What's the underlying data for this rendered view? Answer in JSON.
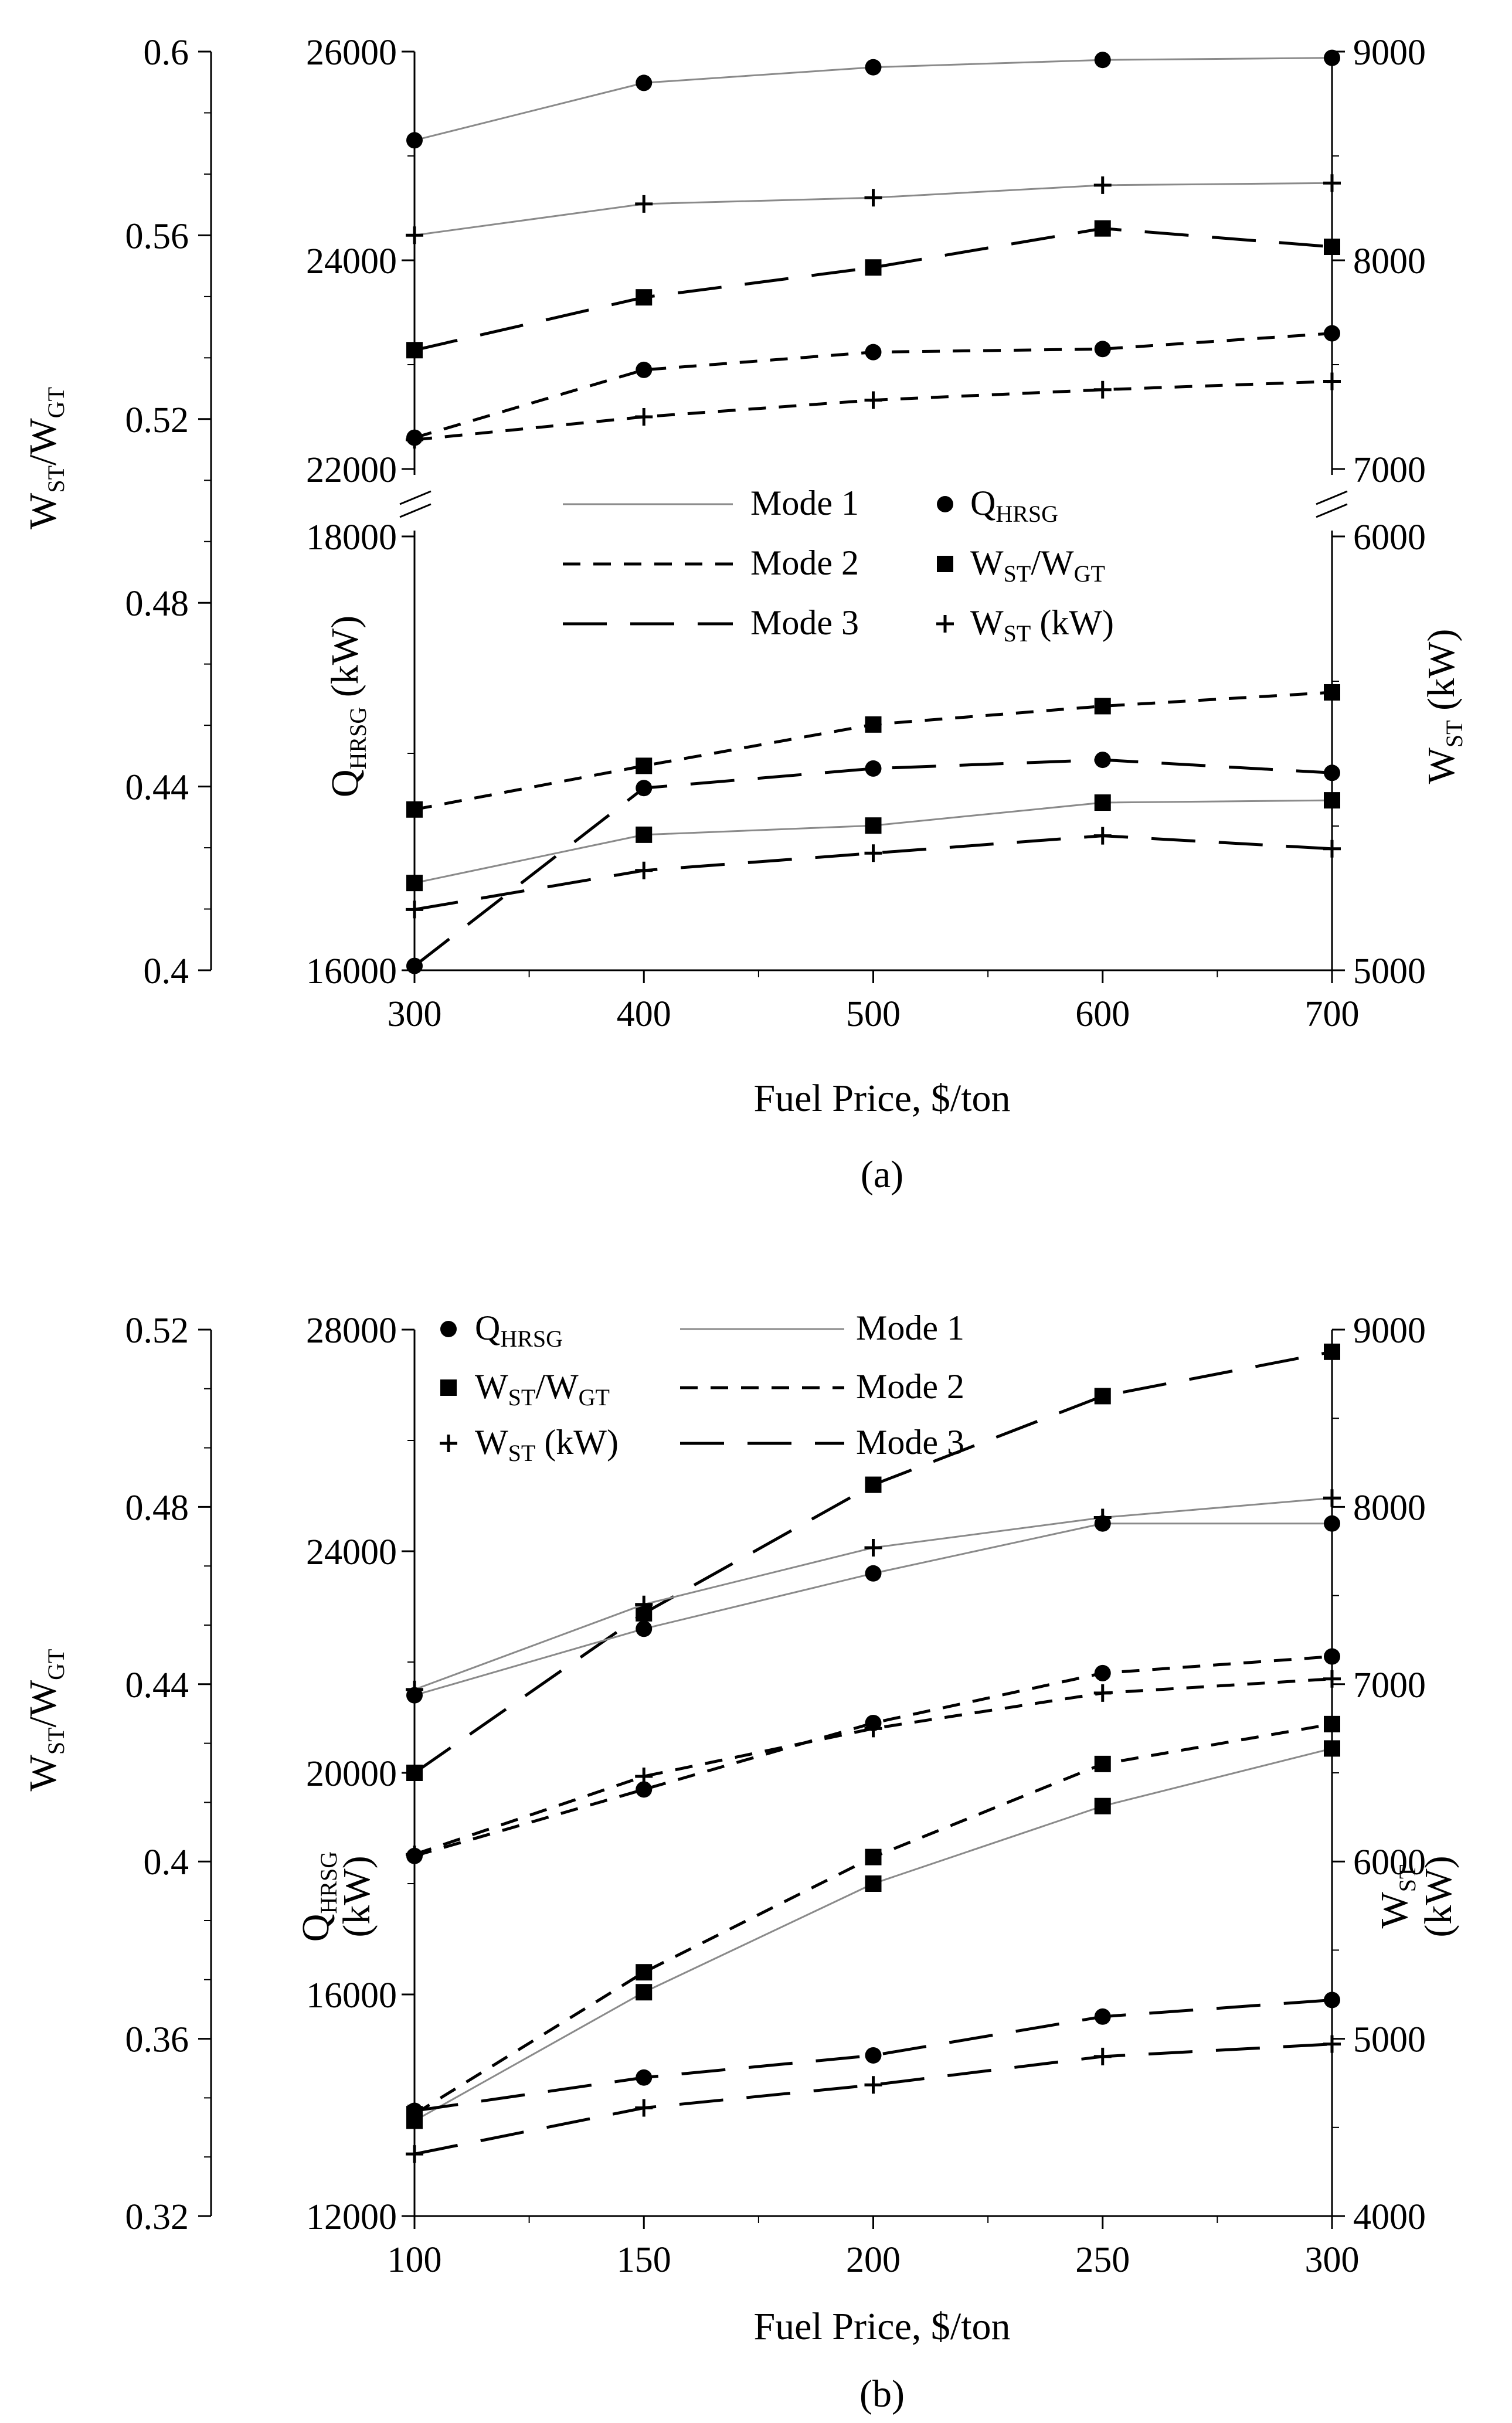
{
  "chart_data": [
    {
      "type": "line",
      "panel_label": "(a)",
      "xlabel": "Fuel Price, $/ton",
      "x": [
        300,
        400,
        500,
        600,
        700
      ],
      "xlim": [
        300,
        700
      ],
      "x_ticks": [
        "300",
        "400",
        "500",
        "600",
        "700"
      ],
      "axes": {
        "ratio": {
          "label_main": "W",
          "label_sub1": "ST",
          "label_sep": "/W",
          "label_sub2": "GT",
          "ylim": [
            0.4,
            0.6
          ],
          "ticks": [
            0.4,
            0.44,
            0.48,
            0.52,
            0.56,
            0.6
          ],
          "tick_labels": [
            "0.4",
            "0.44",
            "0.48",
            "0.52",
            "0.56",
            "0.6"
          ]
        },
        "qhrsg": {
          "label_main": "Q",
          "label_sub": "HRSG",
          "label_rest": " (kW)",
          "broken": true,
          "lower_range": [
            16000,
            18000
          ],
          "upper_range": [
            22000,
            26000
          ],
          "tick_labels_lower": [
            "16000",
            "18000"
          ],
          "tick_labels_upper": [
            "22000",
            "24000",
            "26000"
          ]
        },
        "wst": {
          "label_main": "W",
          "label_sub": "ST",
          "label_rest": " (kW)",
          "broken": true,
          "lower_range": [
            5000,
            6000
          ],
          "upper_range": [
            7000,
            9000
          ],
          "tick_labels_lower": [
            "5000",
            "6000"
          ],
          "tick_labels_upper": [
            "7000",
            "8000",
            "9000"
          ]
        }
      },
      "series": [
        {
          "name": "Q_HRSG Mode 1",
          "mode": "Mode 1",
          "variable": "Q_HRSG",
          "values": [
            25150,
            25700,
            25850,
            25920,
            25940
          ]
        },
        {
          "name": "W_ST Mode 1",
          "mode": "Mode 1",
          "variable": "W_ST",
          "values": [
            8120,
            8270,
            8300,
            8360,
            8370
          ]
        },
        {
          "name": "W_ST/W_GT Mode 3",
          "mode": "Mode 3",
          "variable": "W_ST/W_GT",
          "values": [
            0.535,
            0.5465,
            0.553,
            0.5615,
            0.5575
          ]
        },
        {
          "name": "Q_HRSG Mode 2",
          "mode": "Mode 2",
          "variable": "Q_HRSG",
          "values": [
            22300,
            22950,
            23120,
            23150,
            23300
          ]
        },
        {
          "name": "W_ST Mode 2",
          "mode": "Mode 2",
          "variable": "W_ST",
          "values": [
            7140,
            7250,
            7330,
            7380,
            7420
          ]
        },
        {
          "name": "W_ST/W_GT Mode 2",
          "mode": "Mode 2",
          "variable": "W_ST/W_GT",
          "values": [
            0.435,
            0.4445,
            0.4535,
            0.4575,
            0.4605
          ]
        },
        {
          "name": "Q_HRSG Mode 3",
          "mode": "Mode 3",
          "variable": "Q_HRSG",
          "values": [
            16020,
            16840,
            16930,
            16970,
            16910
          ]
        },
        {
          "name": "W_ST/W_GT Mode 1",
          "mode": "Mode 1",
          "variable": "W_ST/W_GT",
          "values": [
            0.419,
            0.4295,
            0.4315,
            0.4365,
            0.437
          ]
        },
        {
          "name": "W_ST Mode 3",
          "mode": "Mode 3",
          "variable": "W_ST",
          "values": [
            5140,
            5230,
            5270,
            5310,
            5280
          ]
        }
      ],
      "legend": {
        "placement": "center",
        "modes": [
          "Mode 1",
          "Mode 2",
          "Mode 3"
        ],
        "markers": [
          {
            "main": "Q",
            "sub": "HRSG",
            "rest": ""
          },
          {
            "main": "W",
            "sub": "ST",
            "sep": "/W",
            "sub2": "GT",
            "rest": ""
          },
          {
            "main": "W",
            "sub": "ST",
            "rest": " (kW)"
          }
        ]
      }
    },
    {
      "type": "line",
      "panel_label": "(b)",
      "xlabel": "Fuel Price, $/ton",
      "x": [
        100,
        150,
        200,
        250,
        300
      ],
      "xlim": [
        100,
        300
      ],
      "x_ticks": [
        "100",
        "150",
        "200",
        "250",
        "300"
      ],
      "axes": {
        "ratio": {
          "label_main": "W",
          "label_sub1": "ST",
          "label_sep": "/W",
          "label_sub2": "GT",
          "ylim": [
            0.32,
            0.52
          ],
          "ticks": [
            0.32,
            0.36,
            0.4,
            0.44,
            0.48,
            0.52
          ],
          "tick_labels": [
            "0.32",
            "0.36",
            "0.4",
            "0.44",
            "0.48",
            "0.52"
          ]
        },
        "qhrsg": {
          "label_main": "Q",
          "label_sub": "HRSG",
          "label_rest": "(kW)",
          "ylim": [
            12000,
            28000
          ],
          "ticks": [
            12000,
            16000,
            20000,
            24000,
            28000
          ],
          "tick_labels": [
            "12000",
            "16000",
            "20000",
            "24000",
            "28000"
          ]
        },
        "wst": {
          "label_main": "W",
          "label_sub": "ST",
          "label_rest": "(kW)",
          "ylim": [
            4000,
            9000
          ],
          "ticks": [
            4000,
            5000,
            6000,
            7000,
            8000,
            9000
          ],
          "tick_labels": [
            "4000",
            "5000",
            "6000",
            "7000",
            "8000",
            "9000"
          ]
        }
      },
      "series": [
        {
          "name": "W_ST/W_GT Mode 3",
          "mode": "Mode 3",
          "variable": "W_ST/W_GT",
          "values": [
            0.42,
            0.456,
            0.485,
            0.505,
            0.515
          ]
        },
        {
          "name": "W_ST Mode 1",
          "mode": "Mode 1",
          "variable": "W_ST",
          "values": [
            6970,
            7450,
            7770,
            7940,
            8050
          ]
        },
        {
          "name": "Q_HRSG Mode 1",
          "mode": "Mode 1",
          "variable": "Q_HRSG",
          "values": [
            21400,
            22600,
            23600,
            24500,
            24500
          ]
        },
        {
          "name": "Q_HRSG Mode 2",
          "mode": "Mode 2",
          "variable": "Q_HRSG",
          "values": [
            18500,
            19700,
            20900,
            21800,
            22100
          ]
        },
        {
          "name": "W_ST Mode 2",
          "mode": "Mode 2",
          "variable": "W_ST",
          "values": [
            6040,
            6480,
            6750,
            6950,
            7030
          ]
        },
        {
          "name": "W_ST/W_GT Mode 2",
          "mode": "Mode 2",
          "variable": "W_ST/W_GT",
          "values": [
            0.343,
            0.375,
            0.401,
            0.422,
            0.431
          ]
        },
        {
          "name": "W_ST/W_GT Mode 1",
          "mode": "Mode 1",
          "variable": "W_ST/W_GT",
          "values": [
            0.3415,
            0.3705,
            0.395,
            0.4125,
            0.4255
          ]
        },
        {
          "name": "Q_HRSG Mode 3",
          "mode": "Mode 3",
          "variable": "Q_HRSG",
          "values": [
            13900,
            14500,
            14900,
            15600,
            15900
          ]
        },
        {
          "name": "W_ST Mode 3",
          "mode": "Mode 3",
          "variable": "W_ST",
          "values": [
            4350,
            4610,
            4740,
            4900,
            4970
          ]
        }
      ],
      "legend": {
        "placement": "top",
        "modes": [
          "Mode 1",
          "Mode 2",
          "Mode 3"
        ],
        "markers": [
          {
            "main": "Q",
            "sub": "HRSG",
            "rest": ""
          },
          {
            "main": "W",
            "sub": "ST",
            "sep": "/W",
            "sub2": "GT",
            "rest": ""
          },
          {
            "main": "W",
            "sub": "ST",
            "rest": " (kW)"
          }
        ]
      }
    }
  ]
}
